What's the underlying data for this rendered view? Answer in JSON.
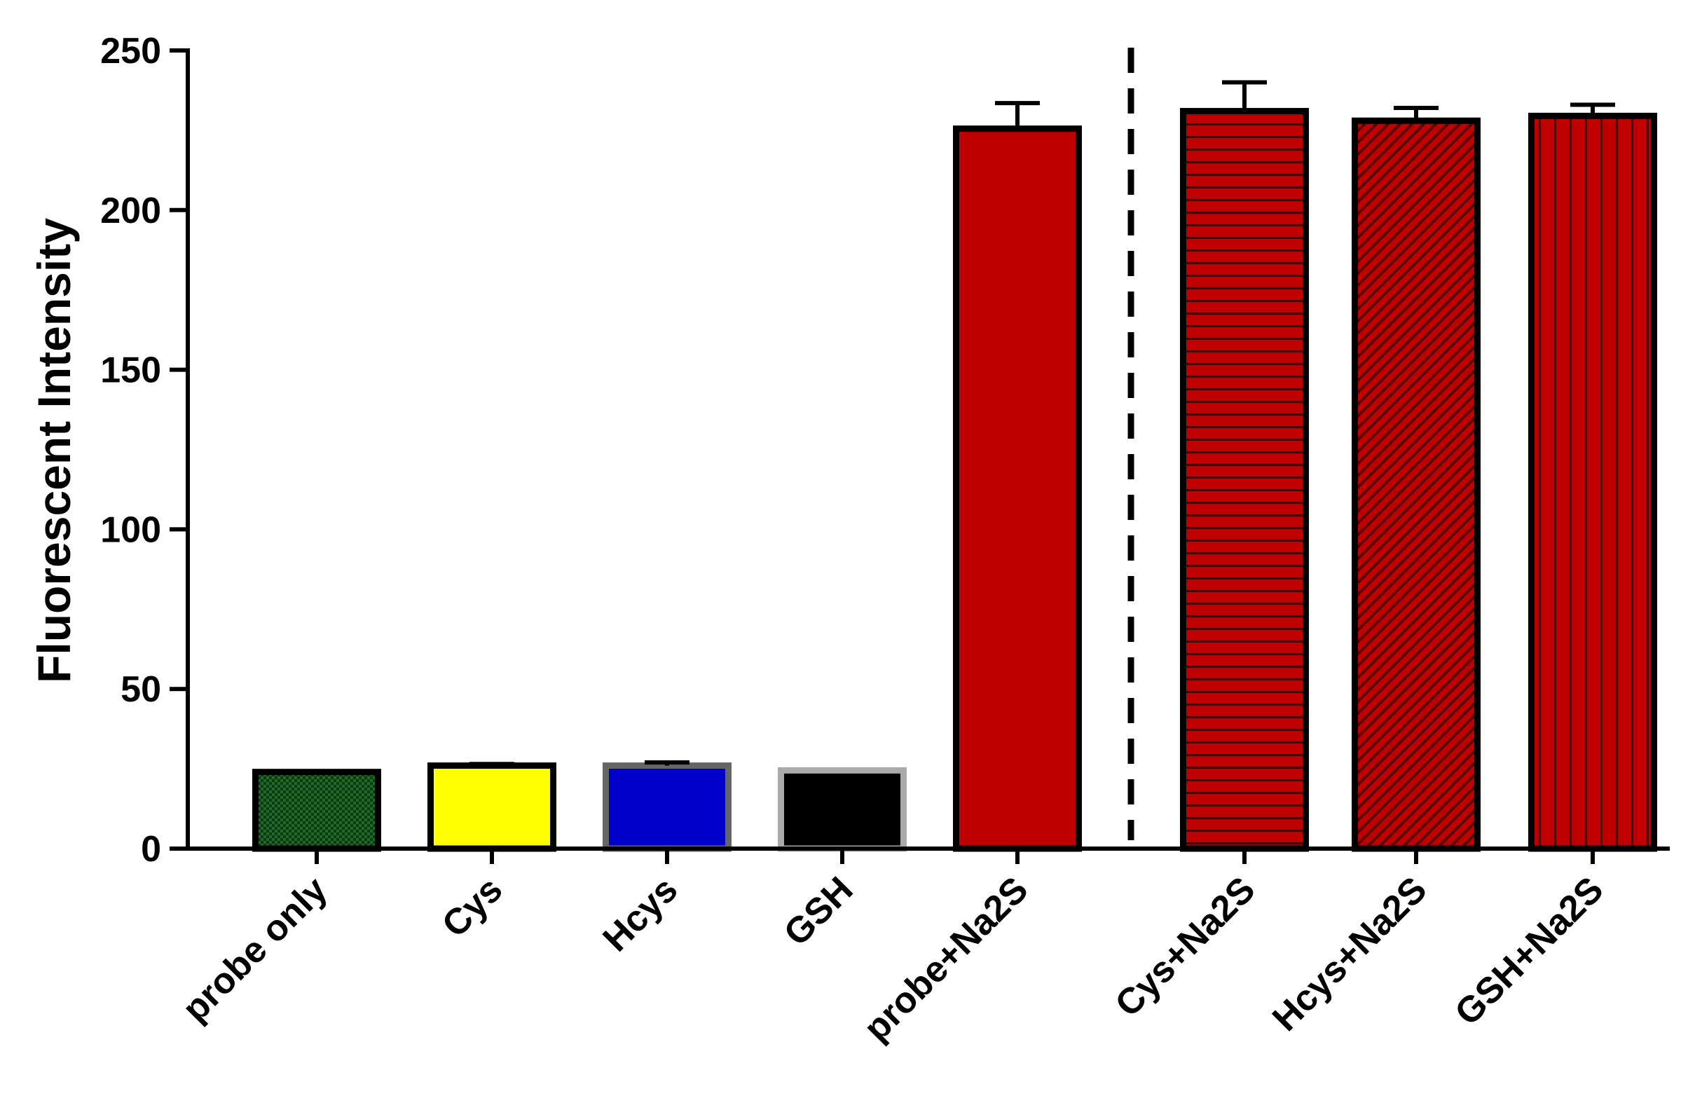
{
  "chart_data": {
    "type": "bar",
    "ylabel": "Fluorescent Intensity",
    "xlabel": "",
    "ylim": [
      0,
      250
    ],
    "yticks": [
      0,
      50,
      100,
      150,
      200,
      250
    ],
    "categories": [
      "probe only",
      "Cys",
      "Hcys",
      "GSH",
      "probe+Na2S",
      "Cys+Na2S",
      "Hcys+Na2S",
      "GSH+Na2S"
    ],
    "values": [
      24,
      26,
      26,
      24.5,
      225.5,
      231,
      228,
      229.5
    ],
    "errors": [
      0,
      0.5,
      1,
      0,
      8,
      9,
      4,
      3.5
    ],
    "bars": [
      {
        "fill": "#0c3a12",
        "border": "#000000",
        "pattern": "checker"
      },
      {
        "fill": "#ffff00",
        "border": "#000000",
        "pattern": "none"
      },
      {
        "fill": "#0000cc",
        "border": "#666666",
        "pattern": "none"
      },
      {
        "fill": "#000000",
        "border": "#aaaaaa",
        "pattern": "none"
      },
      {
        "fill": "#c00000",
        "border": "#000000",
        "pattern": "none"
      },
      {
        "fill": "#c00000",
        "border": "#000000",
        "pattern": "horizontal"
      },
      {
        "fill": "#c00000",
        "border": "#000000",
        "pattern": "diagonal"
      },
      {
        "fill": "#c00000",
        "border": "#000000",
        "pattern": "vertical"
      }
    ],
    "separator": {
      "after_index": 4,
      "style": "dashed"
    },
    "grid": false,
    "legend": "none"
  }
}
